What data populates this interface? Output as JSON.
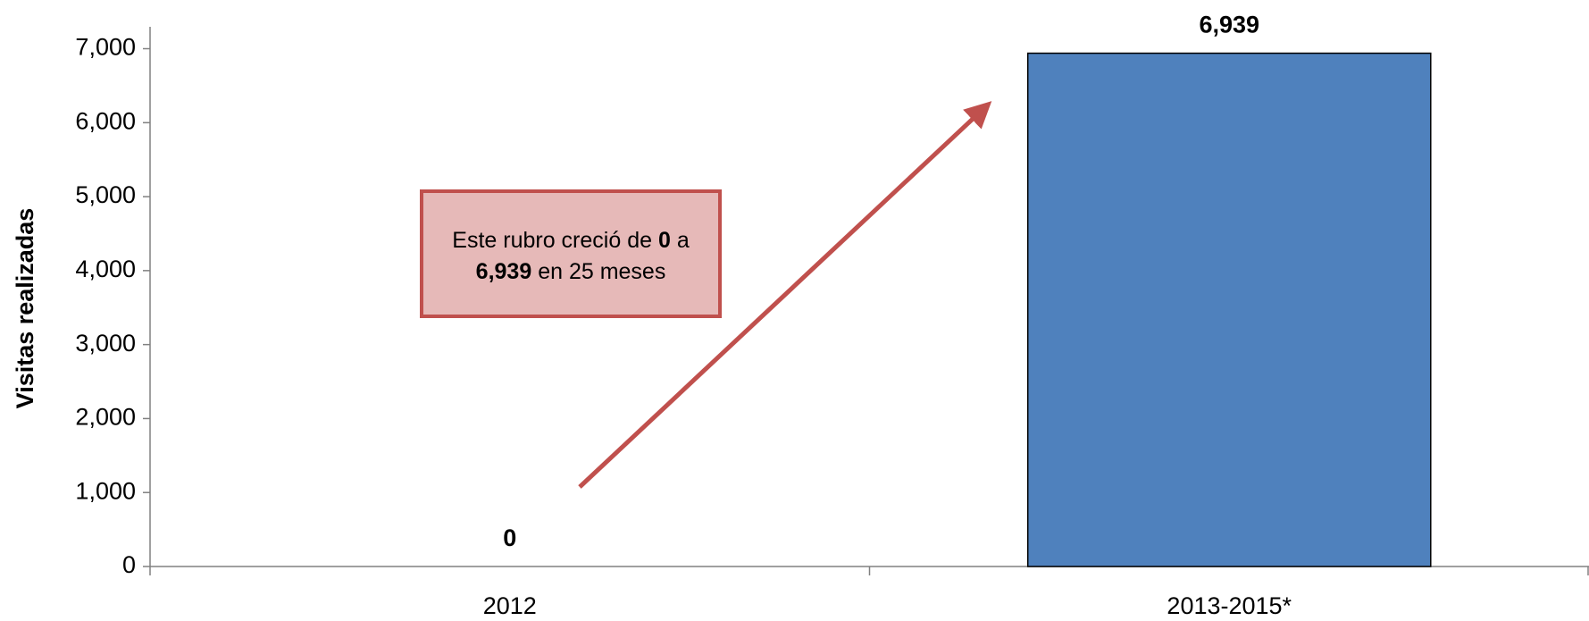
{
  "chart_data": {
    "type": "bar",
    "y_label": "Visitas realizadas",
    "categories": [
      "2012",
      "2013-2015*"
    ],
    "values": [
      0,
      6939
    ],
    "value_labels": [
      "0",
      "6,939"
    ],
    "color": "#4f81bd",
    "ylim": [
      0,
      7000
    ],
    "yticks": [
      0,
      {
        "value": 1000,
        "label": "1,000"
      },
      {
        "value": 2000,
        "label": "2,000"
      },
      {
        "value": 3000,
        "label": "3,000"
      },
      {
        "value": 4000,
        "label": "4,000"
      },
      {
        "value": 5000,
        "label": "5,000"
      },
      {
        "value": 6000,
        "label": "6,000"
      },
      {
        "value": 7000,
        "label": "7,000"
      }
    ],
    "grid": false,
    "annotation": {
      "line1": [
        "Este rubro creció de",
        "0",
        "a"
      ],
      "line2": [
        "6,939",
        "en 25 meses"
      ]
    }
  }
}
